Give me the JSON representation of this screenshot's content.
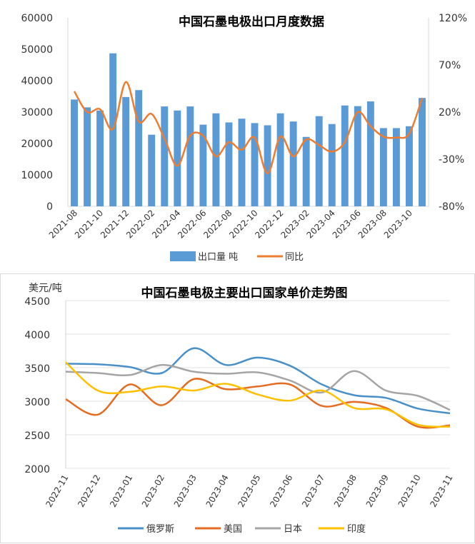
{
  "chart_data": [
    {
      "type": "bar",
      "title": "中国石墨电极出口月度数据",
      "categories": [
        "2021-08",
        "2021-09",
        "2021-10",
        "2021-11",
        "2021-12",
        "2022-01",
        "2022-02",
        "2022-03",
        "2022-04",
        "2022-05",
        "2022-06",
        "2022-07",
        "2022-08",
        "2022-09",
        "2022-10",
        "2022-11",
        "2022-12",
        "2023-01",
        "2023-02",
        "2023-03",
        "2023-04",
        "2023-05",
        "2023-06",
        "2023-07",
        "2023-08",
        "2023-09",
        "2023-10",
        "2023-11"
      ],
      "x_tick_labels": [
        "2021-08",
        "2021-10",
        "2021-12",
        "2022-02",
        "2022-04",
        "2022-06",
        "2022-08",
        "2022-10",
        "2022-12",
        "2023-02",
        "2023-04",
        "2023-06",
        "2023-08",
        "2023-10"
      ],
      "series": [
        {
          "name": "出口量  吨",
          "axis": "left",
          "color": "#5B9BD5",
          "values": [
            34000,
            31500,
            30500,
            48700,
            34800,
            37000,
            22800,
            31800,
            30500,
            31800,
            26000,
            29600,
            26700,
            27900,
            26500,
            25800,
            29600,
            27000,
            22100,
            28700,
            26200,
            32100,
            31900,
            33400,
            24900,
            24900,
            25500,
            34500
          ]
        },
        {
          "name": "同比",
          "axis": "right",
          "type": "line",
          "color": "#ED7D31",
          "values": [
            42,
            20,
            23,
            2,
            52,
            10,
            18,
            -8,
            -37,
            -5,
            -5,
            -27,
            -12,
            -20,
            -7,
            -45,
            -6,
            -27,
            -9,
            -15,
            -22,
            -12,
            20,
            5,
            -6,
            -7,
            -3,
            35
          ]
        }
      ],
      "ylim_left": [
        0,
        60000
      ],
      "yticks_left": [
        "0",
        "10000",
        "20000",
        "30000",
        "40000",
        "50000",
        "60000"
      ],
      "ylim_right": [
        -80,
        120
      ],
      "yticks_right": [
        "-80%",
        "-30%",
        "20%",
        "70%",
        "120%"
      ],
      "legend_position": "bottom"
    },
    {
      "type": "line",
      "title": "中国石墨电极主要出口国家单价走势图",
      "ylabel": "美元/吨",
      "categories": [
        "2022-11",
        "2022-12",
        "2023-01",
        "2023-02",
        "2023-03",
        "2023-04",
        "2023-05",
        "2023-06",
        "2023-07",
        "2023-08",
        "2023-09",
        "2023-10",
        "2023-11"
      ],
      "ylim": [
        2000,
        4500
      ],
      "yticks": [
        "2000",
        "2500",
        "3000",
        "3500",
        "4000",
        "4500"
      ],
      "series": [
        {
          "name": "俄罗斯",
          "color": "#4A90C8",
          "values": [
            3560,
            3550,
            3510,
            3420,
            3790,
            3540,
            3650,
            3530,
            3250,
            3090,
            3050,
            2890,
            2820
          ]
        },
        {
          "name": "美国",
          "color": "#E36C22",
          "values": [
            3030,
            2800,
            3250,
            2940,
            3330,
            3180,
            3220,
            3250,
            2930,
            2990,
            2900,
            2620,
            2640
          ]
        },
        {
          "name": "日本",
          "color": "#A5A5A5",
          "values": [
            3440,
            3420,
            3390,
            3540,
            3440,
            3410,
            3430,
            3310,
            3130,
            3450,
            3160,
            3080,
            2870
          ]
        },
        {
          "name": "印度",
          "color": "#FFC000",
          "values": [
            3580,
            3160,
            3140,
            3220,
            3160,
            3260,
            3100,
            3010,
            3160,
            2900,
            2880,
            2650,
            2620
          ]
        }
      ],
      "grid": "horizontal",
      "legend_position": "bottom"
    }
  ]
}
